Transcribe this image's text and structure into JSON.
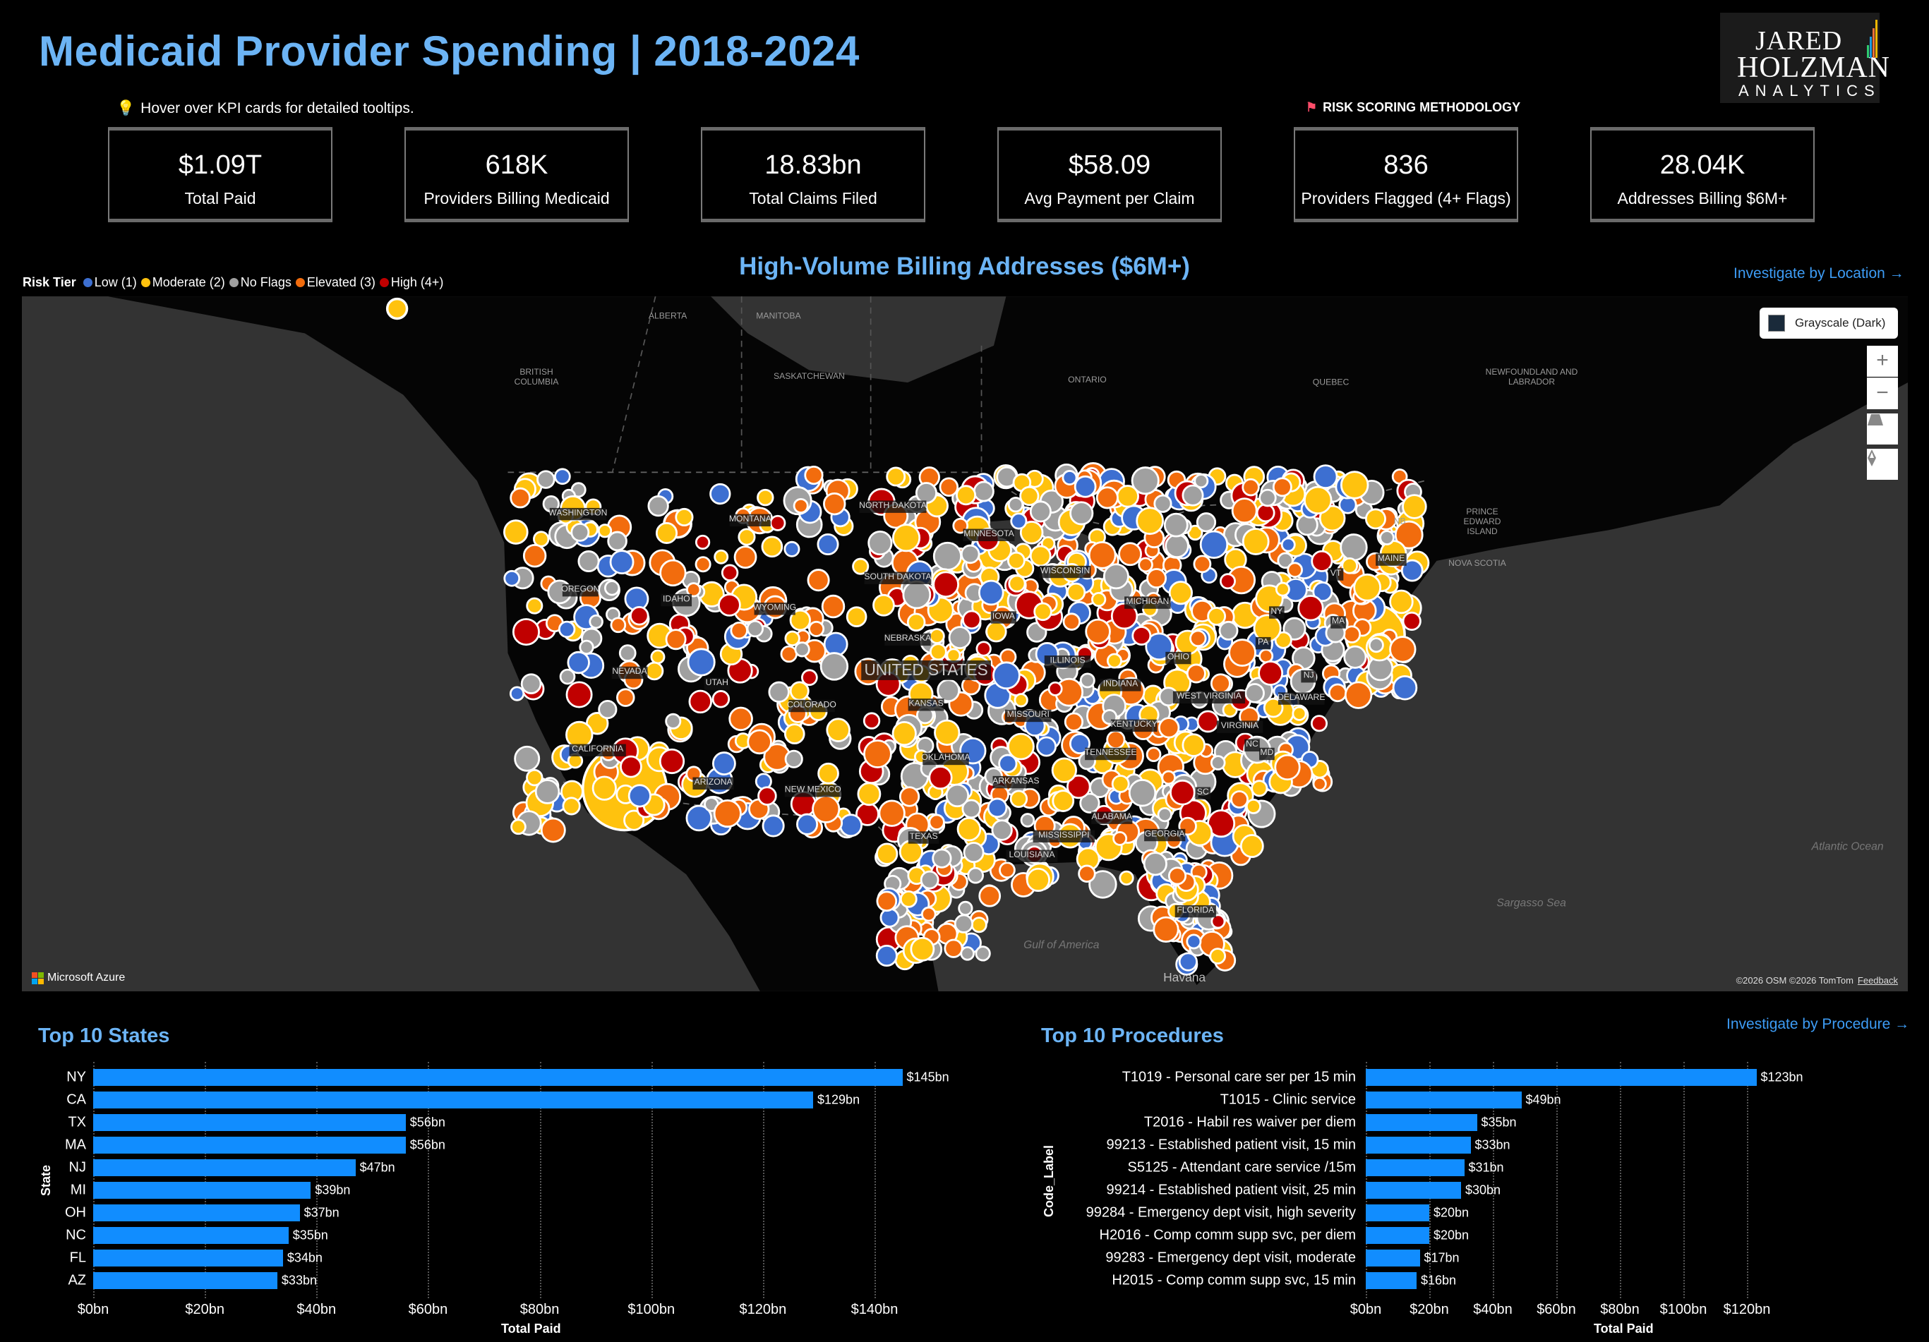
{
  "header": {
    "title": "Medicaid Provider Spending | 2018-2024",
    "logo": {
      "line1": "JARED",
      "line2": "HOLZMAN",
      "line3": "ANALYTICS",
      "bar_colors": [
        "#2ecc71",
        "#1f9de0",
        "#e8703a",
        "#f5b800"
      ]
    },
    "hint": "Hover over KPI cards for detailed tooltips.",
    "hint_icon": "lightbulb-icon",
    "risk_link": "RISK SCORING METHODOLOGY",
    "risk_icon": "flag-icon"
  },
  "kpis": [
    {
      "value": "$1.09T",
      "label": "Total Paid"
    },
    {
      "value": "618K",
      "label": "Providers Billing Medicaid"
    },
    {
      "value": "18.83bn",
      "label": "Total Claims Filed"
    },
    {
      "value": "$58.09",
      "label": "Avg Payment per Claim"
    },
    {
      "value": "836",
      "label": "Providers Flagged (4+ Flags)"
    },
    {
      "value": "28.04K",
      "label": "Addresses Billing $6M+"
    }
  ],
  "map": {
    "title": "High-Volume Billing Addresses ($6M+)",
    "link": "Investigate by Location →",
    "legend_title": "Risk Tier",
    "legend": [
      {
        "label": "Low (1)",
        "color": "#3d6fd1"
      },
      {
        "label": "Moderate (2)",
        "color": "#ffc20e"
      },
      {
        "label": "No Flags",
        "color": "#a0a0a0"
      },
      {
        "label": "Elevated (3)",
        "color": "#f26c0d"
      },
      {
        "label": "High (4+)",
        "color": "#c00000"
      }
    ],
    "style_button": "Grayscale (Dark)",
    "controls": {
      "zoom_in": "+",
      "zoom_out": "−"
    },
    "brand": "Microsoft Azure",
    "attribution": "©2026 OSM  ©2026 TomTom",
    "feedback": "Feedback",
    "region_labels": [
      "ALBERTA",
      "MANITOBA",
      "BRITISH COLUMBIA",
      "SASKATCHEWAN",
      "ONTARIO",
      "QUEBEC",
      "NEWFOUNDLAND AND LABRADOR",
      "NB",
      "PRINCE EDWARD ISLAND",
      "NOVA SCOTIA"
    ],
    "water_labels": [
      "Atlantic Ocean",
      "Sargasso Sea",
      "Gulf of America"
    ],
    "city_labels": [
      "Havana"
    ],
    "country_label": "UNITED STATES",
    "state_labels": [
      "WASHINGTON",
      "MONTANA",
      "NORTH DAKOTA",
      "MINNESOTA",
      "OREGON",
      "IDAHO",
      "WYOMING",
      "SOUTH DAKOTA",
      "WISCONSIN",
      "MICHIGAN",
      "NEBRASKA",
      "IOWA",
      "NEVADA",
      "UTAH",
      "COLORADO",
      "KANSAS",
      "MISSOURI",
      "ILLINOIS",
      "INDIANA",
      "OHIO",
      "KENTUCKY",
      "WEST VIRGINIA",
      "VIRGINIA",
      "CALIFORNIA",
      "ARIZONA",
      "NEW MEXICO",
      "OKLAHOMA",
      "ARKANSAS",
      "TENNESSEE",
      "NC",
      "SC",
      "ALABAMA",
      "MISSISSIPPI",
      "GEORGIA",
      "LOUISIANA",
      "TEXAS",
      "FLORIDA",
      "MAINE",
      "VT",
      "NY",
      "PA",
      "MA",
      "NJ",
      "DELAWARE",
      "MD"
    ]
  },
  "chart_data": [
    {
      "type": "bar",
      "orientation": "horizontal",
      "title": "Top 10 States",
      "xlabel": "Total Paid",
      "ylabel": "State",
      "categories": [
        "NY",
        "CA",
        "TX",
        "MA",
        "NJ",
        "MI",
        "OH",
        "NC",
        "FL",
        "AZ"
      ],
      "values": [
        145,
        129,
        56,
        56,
        47,
        39,
        37,
        35,
        34,
        33
      ],
      "data_labels": [
        "$145bn",
        "$129bn",
        "$56bn",
        "$56bn",
        "$47bn",
        "$39bn",
        "$37bn",
        "$35bn",
        "$34bn",
        "$33bn"
      ],
      "ticks": [
        0,
        20,
        40,
        60,
        80,
        100,
        120,
        140
      ],
      "tick_labels": [
        "$0bn",
        "$20bn",
        "$40bn",
        "$60bn",
        "$80bn",
        "$100bn",
        "$120bn",
        "$140bn"
      ],
      "xlim": [
        0,
        150
      ],
      "grid": true,
      "color": "#118dff"
    },
    {
      "type": "bar",
      "orientation": "horizontal",
      "title": "Top 10 Procedures",
      "link": "Investigate by Procedure →",
      "xlabel": "Total Paid",
      "ylabel": "Code_Label",
      "categories": [
        "T1019 - Personal care ser per 15 min",
        "T1015 - Clinic service",
        "T2016 - Habil res waiver per diem",
        "99213 - Established patient visit, 15 min",
        "S5125 - Attendant care service /15m",
        "99214 - Established patient visit, 25 min",
        "99284 - Emergency dept visit, high severity",
        "H2016 - Comp comm supp svc, per diem",
        "99283 - Emergency dept visit, moderate",
        "H2015 - Comp comm supp svc, 15 min"
      ],
      "values": [
        123,
        49,
        35,
        33,
        31,
        30,
        20,
        20,
        17,
        16
      ],
      "data_labels": [
        "$123bn",
        "$49bn",
        "$35bn",
        "$33bn",
        "$31bn",
        "$30bn",
        "$20bn",
        "$20bn",
        "$17bn",
        "$16bn"
      ],
      "ticks": [
        0,
        20,
        40,
        60,
        80,
        100,
        120
      ],
      "tick_labels": [
        "$0bn",
        "$20bn",
        "$40bn",
        "$60bn",
        "$80bn",
        "$100bn",
        "$120bn"
      ],
      "xlim": [
        0,
        128
      ],
      "grid": true,
      "color": "#118dff"
    }
  ]
}
